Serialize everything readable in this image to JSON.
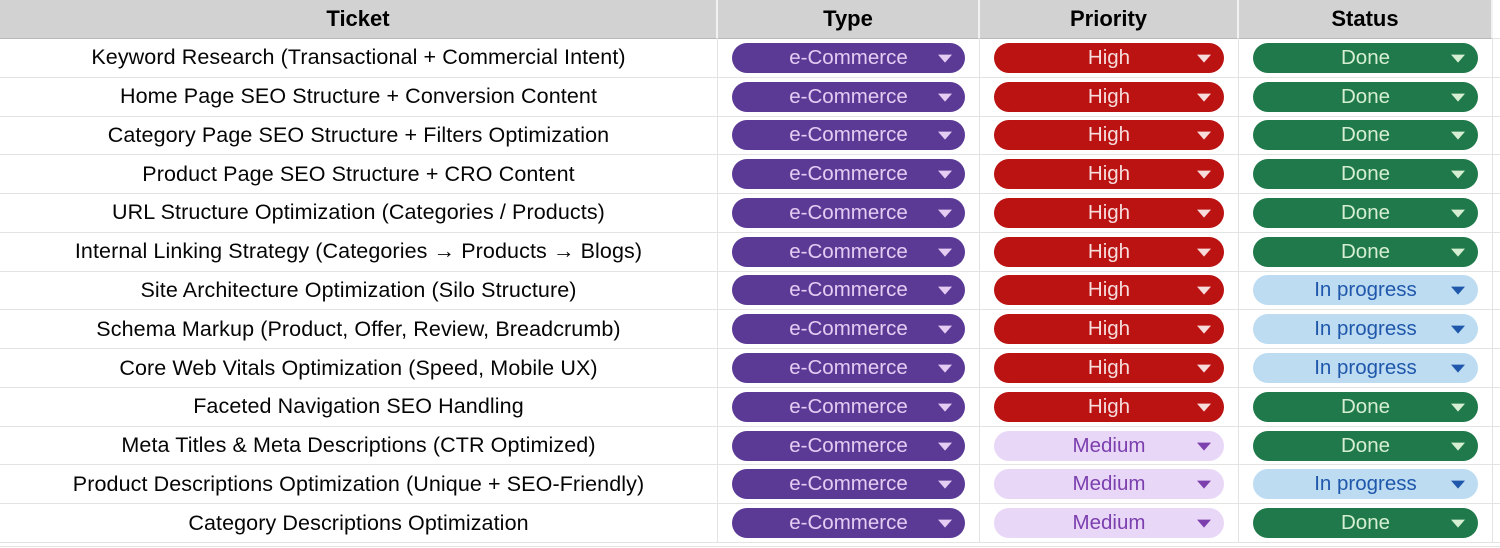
{
  "table": {
    "columns": [
      {
        "key": "ticket",
        "label": "Ticket"
      },
      {
        "key": "type",
        "label": "Type"
      },
      {
        "key": "priority",
        "label": "Priority"
      },
      {
        "key": "status",
        "label": "Status"
      }
    ],
    "rows": [
      {
        "ticket": "Keyword Research (Transactional + Commercial Intent)",
        "type": "e-Commerce",
        "priority": "High",
        "status": "Done"
      },
      {
        "ticket": "Home Page SEO Structure + Conversion Content",
        "type": "e-Commerce",
        "priority": "High",
        "status": "Done"
      },
      {
        "ticket": "Category Page SEO Structure + Filters Optimization",
        "type": "e-Commerce",
        "priority": "High",
        "status": "Done"
      },
      {
        "ticket": "Product Page SEO Structure + CRO Content",
        "type": "e-Commerce",
        "priority": "High",
        "status": "Done"
      },
      {
        "ticket": "URL Structure Optimization (Categories / Products)",
        "type": "e-Commerce",
        "priority": "High",
        "status": "Done"
      },
      {
        "ticket": "Internal Linking Strategy (Categories → Products → Blogs)",
        "type": "e-Commerce",
        "priority": "High",
        "status": "Done"
      },
      {
        "ticket": "Site Architecture Optimization (Silo Structure)",
        "type": "e-Commerce",
        "priority": "High",
        "status": "In progress"
      },
      {
        "ticket": "Schema Markup (Product, Offer, Review, Breadcrumb)",
        "type": "e-Commerce",
        "priority": "High",
        "status": "In progress"
      },
      {
        "ticket": "Core Web Vitals Optimization (Speed, Mobile UX)",
        "type": "e-Commerce",
        "priority": "High",
        "status": "In progress"
      },
      {
        "ticket": "Faceted Navigation SEO Handling",
        "type": "e-Commerce",
        "priority": "High",
        "status": "Done"
      },
      {
        "ticket": "Meta Titles & Meta Descriptions (CTR Optimized)",
        "type": "e-Commerce",
        "priority": "Medium",
        "status": "Done"
      },
      {
        "ticket": "Product Descriptions Optimization (Unique + SEO-Friendly)",
        "type": "e-Commerce",
        "priority": "Medium",
        "status": "In progress"
      },
      {
        "ticket": "Category Descriptions Optimization",
        "type": "e-Commerce",
        "priority": "Medium",
        "status": "Done"
      }
    ]
  },
  "colors": {
    "header_bg": "#d2d2d2",
    "gridline": "#e3e3e3",
    "chips": {
      "e-Commerce": {
        "bg": "#5b3a96",
        "fg": "#e3cdf3"
      },
      "High": {
        "bg": "#bb1212",
        "fg": "#f7dcdc"
      },
      "Medium": {
        "bg": "#e9d7f7",
        "fg": "#7b3fae"
      },
      "Done": {
        "bg": "#20794a",
        "fg": "#d6efd3"
      },
      "In progress": {
        "bg": "#bddcf2",
        "fg": "#1f57ab"
      }
    }
  },
  "icons": {
    "dropdown_arrow": "triangle-down"
  }
}
